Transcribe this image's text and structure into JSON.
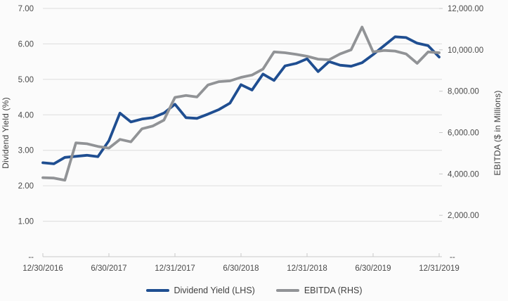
{
  "chart_data": {
    "type": "line",
    "title": "",
    "ylabel_left": "Dividend Yield (%)",
    "ylabel_right": "EBITDA ($ in Millions)",
    "grid": true,
    "legend_position": "bottom",
    "y_left_axis": {
      "min": 0,
      "max": 7,
      "tick_interval": 1,
      "tick_labels_top_to_bottom": [
        "7.00",
        "6.00",
        "5.00",
        "4.00",
        "3.00",
        "2.00",
        "1.00"
      ],
      "zero_label": "--"
    },
    "y_right_axis": {
      "min": 0,
      "max": 12000,
      "tick_interval": 2000,
      "tick_labels_top_to_bottom": [
        "12,000.00",
        "10,000.00",
        "8,000.00",
        "6,000.00",
        "4,000.00",
        "2,000.00"
      ],
      "zero_label": "--"
    },
    "x_tick_labels": [
      "12/30/2016",
      "6/30/2017",
      "12/31/2017",
      "6/30/2018",
      "12/31/2018",
      "6/30/2019",
      "12/31/2019"
    ],
    "x_tick_indices": [
      0,
      6,
      12,
      18,
      24,
      30,
      36
    ],
    "categories": [
      "12/30/2016",
      "1/31/2017",
      "2/28/2017",
      "3/31/2017",
      "4/30/2017",
      "5/31/2017",
      "6/30/2017",
      "7/31/2017",
      "8/31/2017",
      "9/30/2017",
      "10/31/2017",
      "11/30/2017",
      "12/31/2017",
      "1/31/2018",
      "2/28/2018",
      "3/31/2018",
      "4/30/2018",
      "5/31/2018",
      "6/30/2018",
      "7/31/2018",
      "8/31/2018",
      "9/30/2018",
      "10/31/2018",
      "11/30/2018",
      "12/31/2018",
      "1/31/2019",
      "2/28/2019",
      "3/31/2019",
      "4/30/2019",
      "5/31/2019",
      "6/30/2019",
      "7/31/2019",
      "8/31/2019",
      "9/30/2019",
      "10/31/2019",
      "11/30/2019",
      "12/31/2019"
    ],
    "series": [
      {
        "name": "Dividend Yield (LHS)",
        "axis": "left",
        "color": "#1F4E91",
        "values": [
          2.65,
          2.62,
          2.8,
          2.83,
          2.86,
          2.82,
          3.27,
          4.05,
          3.8,
          3.88,
          3.92,
          4.05,
          4.3,
          3.92,
          3.9,
          4.02,
          4.15,
          4.33,
          4.85,
          4.7,
          5.15,
          4.97,
          5.38,
          5.45,
          5.58,
          5.22,
          5.5,
          5.4,
          5.37,
          5.47,
          5.7,
          5.95,
          6.2,
          6.18,
          6.02,
          5.95,
          5.63
        ]
      },
      {
        "name": "EBITDA (RHS)",
        "axis": "right",
        "color": "#919396",
        "values": [
          3820,
          3800,
          3700,
          5500,
          5460,
          5330,
          5250,
          5670,
          5550,
          6180,
          6320,
          6600,
          7700,
          7790,
          7720,
          8300,
          8460,
          8500,
          8670,
          8780,
          9070,
          9900,
          9860,
          9780,
          9690,
          9550,
          9520,
          9800,
          10000,
          11100,
          9900,
          9970,
          9940,
          9800,
          9350,
          9900,
          9860
        ]
      }
    ],
    "style": {
      "background": "#FBFBFB",
      "gridline_color": "#DCDCDC",
      "axis_line_color": "#C8C8C8",
      "tick_text_color": "#4A4A4A",
      "line_width": 3.8
    }
  }
}
